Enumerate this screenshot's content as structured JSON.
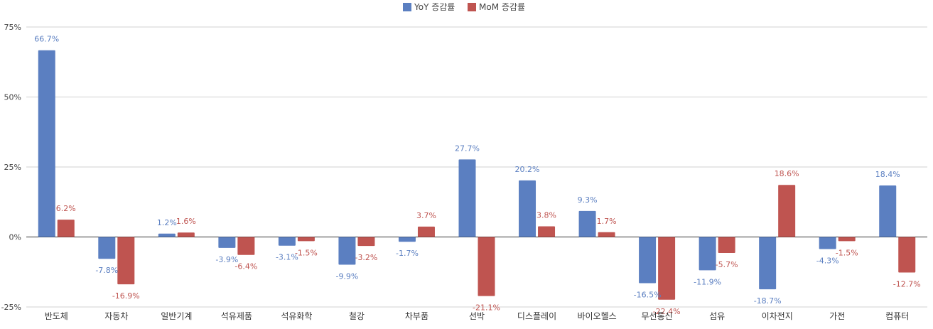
{
  "chart_data": {
    "type": "bar",
    "categories": [
      "반도체",
      "자동차",
      "일반기계",
      "석유제품",
      "석유화학",
      "철강",
      "차부품",
      "선박",
      "디스플레이",
      "바이오헬스",
      "무선통신",
      "섬유",
      "이차전지",
      "가전",
      "컴퓨터"
    ],
    "series": [
      {
        "name": "YoY 증감률",
        "color": "#5b7fc1",
        "values": [
          66.7,
          -7.8,
          1.2,
          -3.9,
          -3.1,
          -9.9,
          -1.7,
          27.7,
          20.2,
          9.3,
          -16.5,
          -11.9,
          -18.7,
          -4.3,
          18.4
        ],
        "labels": [
          "66.7%",
          "-7.8%",
          "1.2%",
          "-3.9%",
          "-3.1%",
          "-9.9%",
          "-1.7%",
          "27.7%",
          "20.2%",
          "9.3%",
          "-16.5%",
          "-11.9%",
          "-18.7%",
          "-4.3%",
          "18.4%"
        ]
      },
      {
        "name": "MoM 증감률",
        "color": "#bf5450",
        "values": [
          6.2,
          -16.9,
          1.6,
          -6.4,
          -1.5,
          -3.2,
          3.7,
          -21.1,
          3.8,
          1.7,
          -22.4,
          -5.7,
          18.6,
          -1.5,
          -12.7
        ],
        "labels": [
          "6.2%",
          "-16.9%",
          "1.6%",
          "-6.4%",
          "-1.5%",
          "-3.2%",
          "3.7%",
          "-21.1%",
          "3.8%",
          "1.7%",
          "-22.4%",
          "-5.7%",
          "18.6%",
          "-1.5%",
          "-12.7%"
        ]
      }
    ],
    "ylim": [
      -25,
      75
    ],
    "yticks": [
      75,
      50,
      25,
      0,
      -25
    ],
    "ytick_labels": [
      "75%",
      "50%",
      "25%",
      "0%",
      "-25%"
    ],
    "grid": true,
    "legend_position": "top-center"
  }
}
